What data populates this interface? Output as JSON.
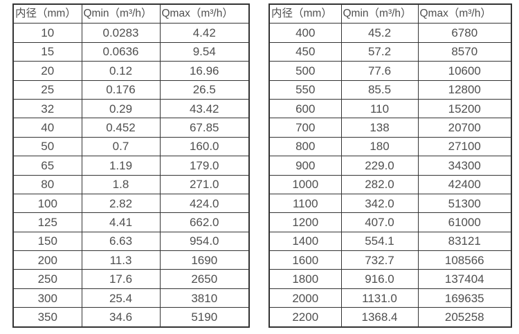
{
  "page": {
    "background_color": "#ffffff",
    "text_color": "#4f4f4f",
    "border_color": "#333333"
  },
  "chart_data": [
    {
      "type": "table",
      "columns": [
        "内径（mm）",
        "Qmin（m³/h）",
        "Qmax（m³/h）"
      ],
      "rows": [
        [
          "10",
          "0.0283",
          "4.42"
        ],
        [
          "15",
          "0.0636",
          "9.54"
        ],
        [
          "20",
          "0.12",
          "16.96"
        ],
        [
          "25",
          "0.176",
          "26.5"
        ],
        [
          "32",
          "0.29",
          "43.42"
        ],
        [
          "40",
          "0.452",
          "67.85"
        ],
        [
          "50",
          "0.7",
          "160.0"
        ],
        [
          "65",
          "1.19",
          "179.0"
        ],
        [
          "80",
          "1.8",
          "271.0"
        ],
        [
          "100",
          "2.82",
          "424.0"
        ],
        [
          "125",
          "4.41",
          "662.0"
        ],
        [
          "150",
          "6.63",
          "954.0"
        ],
        [
          "200",
          "11.3",
          "1690"
        ],
        [
          "250",
          "17.6",
          "2650"
        ],
        [
          "300",
          "25.4",
          "3810"
        ],
        [
          "350",
          "34.6",
          "5190"
        ]
      ]
    },
    {
      "type": "table",
      "columns": [
        "内径（mm）",
        "Qmin（m³/h）",
        "Qmax（m³/h）"
      ],
      "rows": [
        [
          "400",
          "45.2",
          "6780"
        ],
        [
          "450",
          "57.2",
          "8570"
        ],
        [
          "500",
          "77.6",
          "10600"
        ],
        [
          "550",
          "85.5",
          "12800"
        ],
        [
          "600",
          "110",
          "15200"
        ],
        [
          "700",
          "138",
          "20700"
        ],
        [
          "800",
          "180",
          "27100"
        ],
        [
          "900",
          "229.0",
          "34300"
        ],
        [
          "1000",
          "282.0",
          "42400"
        ],
        [
          "1100",
          "342.0",
          "51300"
        ],
        [
          "1200",
          "407.0",
          "61000"
        ],
        [
          "1400",
          "554.1",
          "83121"
        ],
        [
          "1600",
          "732.7",
          "108566"
        ],
        [
          "1800",
          "916.0",
          "137404"
        ],
        [
          "2000",
          "1131.0",
          "169635"
        ],
        [
          "2200",
          "1368.4",
          "205258"
        ]
      ]
    }
  ]
}
